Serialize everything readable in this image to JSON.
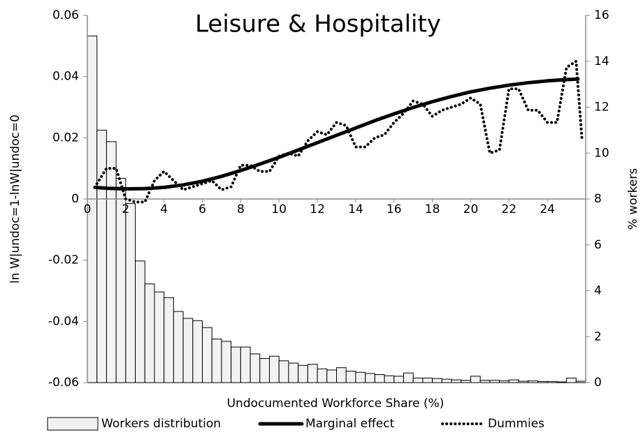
{
  "chart_data": {
    "type": "combo",
    "title": "Leisure & Hospitality",
    "x_label": "Undocumented Workforce Share (%)",
    "y_label": "ln W|undoc=1-lnW|undoc=0",
    "y2_label": "% workers",
    "xlim": [
      0,
      26
    ],
    "xticks": [
      0,
      2,
      4,
      6,
      8,
      10,
      12,
      14,
      16,
      18,
      20,
      22,
      24
    ],
    "ylim": [
      -0.06,
      0.06
    ],
    "yticks": [
      -0.06,
      -0.04,
      -0.02,
      0,
      0.02,
      0.04,
      0.06
    ],
    "y2lim": [
      0,
      16
    ],
    "y2ticks": [
      0,
      2,
      4,
      6,
      8,
      10,
      12,
      14,
      16
    ],
    "grid": false,
    "legend": "bottom",
    "series": [
      {
        "name": "Workers distribution",
        "type": "bar",
        "axis": "y2",
        "color": "#f2f2f2",
        "bins": [
          0,
          0.5,
          1,
          1.5,
          2,
          2.5,
          3,
          3.5,
          4,
          4.5,
          5,
          5.5,
          6,
          6.5,
          7,
          7.5,
          8,
          8.5,
          9,
          9.5,
          10,
          10.5,
          11,
          11.5,
          12,
          12.5,
          13,
          13.5,
          14,
          14.5,
          15,
          15.5,
          16,
          16.5,
          17,
          17.5,
          18,
          18.5,
          19,
          19.5,
          20,
          20.5,
          21,
          21.5,
          22,
          22.5,
          23,
          23.5,
          24,
          24.5,
          25,
          25.5,
          26
        ],
        "values": [
          15.1,
          11.0,
          10.5,
          8.9,
          7.8,
          5.3,
          4.3,
          3.95,
          3.7,
          3.1,
          2.8,
          2.7,
          2.4,
          1.9,
          1.8,
          1.55,
          1.55,
          1.25,
          1.05,
          1.15,
          0.95,
          0.85,
          0.75,
          0.8,
          0.6,
          0.55,
          0.65,
          0.5,
          0.45,
          0.4,
          0.35,
          0.3,
          0.28,
          0.42,
          0.2,
          0.2,
          0.18,
          0.15,
          0.12,
          0.1,
          0.28,
          0.1,
          0.1,
          0.08,
          0.12,
          0.06,
          0.08,
          0.05,
          0.05,
          0.03,
          0.2,
          0.06
        ]
      },
      {
        "name": "Marginal effect",
        "type": "line",
        "color": "#000000",
        "dash": "solid",
        "x": [
          0.4,
          1,
          2,
          3,
          4,
          5,
          6,
          7,
          8,
          9,
          10,
          11,
          12,
          13,
          14,
          15,
          16,
          17,
          18,
          19,
          20,
          21,
          22,
          23,
          24,
          25,
          25.6
        ],
        "values": [
          0.0038,
          0.0035,
          0.0033,
          0.0034,
          0.0038,
          0.0046,
          0.0058,
          0.0074,
          0.0093,
          0.0114,
          0.0136,
          0.016,
          0.0184,
          0.0208,
          0.0232,
          0.0256,
          0.0278,
          0.0299,
          0.0318,
          0.0335,
          0.035,
          0.0362,
          0.0372,
          0.038,
          0.0386,
          0.039,
          0.0392
        ]
      },
      {
        "name": "Dummies",
        "type": "line",
        "color": "#000000",
        "dash": "dotted",
        "x": [
          0.5,
          1,
          1.5,
          2,
          2.5,
          3,
          3.5,
          4,
          4.5,
          5,
          5.5,
          6,
          6.5,
          7,
          7.5,
          8,
          8.5,
          9,
          9.5,
          10,
          10.5,
          11,
          11.5,
          12,
          12.5,
          13,
          13.5,
          14,
          14.5,
          15,
          15.5,
          16,
          16.5,
          17,
          17.5,
          18,
          18.5,
          19,
          19.5,
          20,
          20.5,
          21,
          21.5,
          22,
          22.5,
          23,
          23.5,
          24,
          24.5,
          25,
          25.5,
          25.8
        ],
        "values": [
          0.005,
          0.01,
          0.01,
          0.0,
          -0.001,
          -0.001,
          0.006,
          0.009,
          0.006,
          0.003,
          0.004,
          0.005,
          0.006,
          0.003,
          0.004,
          0.011,
          0.011,
          0.009,
          0.009,
          0.014,
          0.015,
          0.014,
          0.019,
          0.022,
          0.021,
          0.025,
          0.024,
          0.017,
          0.017,
          0.02,
          0.021,
          0.025,
          0.028,
          0.032,
          0.031,
          0.027,
          0.029,
          0.03,
          0.031,
          0.033,
          0.031,
          0.015,
          0.016,
          0.036,
          0.036,
          0.029,
          0.029,
          0.025,
          0.025,
          0.043,
          0.045,
          0.02
        ]
      }
    ]
  }
}
